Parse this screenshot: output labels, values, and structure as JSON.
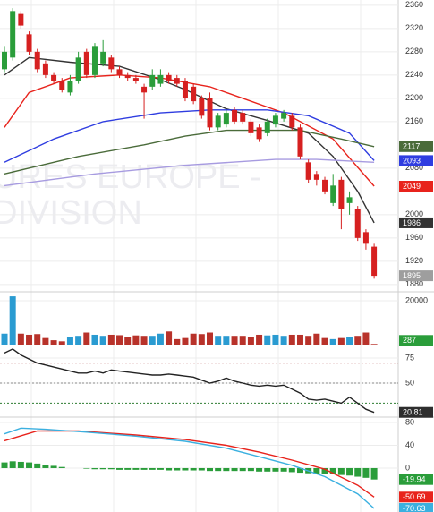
{
  "watermark": [
    "URES EUROPE -",
    "DIVISION"
  ],
  "chart_data": [
    {
      "type": "candlestick",
      "up_color": "#2a9d3a",
      "down_color": "#d62020",
      "last_color": "#9e9e9e",
      "ylim": [
        1869,
        2369
      ],
      "yticks": [
        2360,
        2320,
        2280,
        2240,
        2200,
        2160,
        2080,
        2000,
        1960,
        1920,
        1880
      ],
      "grid": true,
      "open": [
        2250,
        2270,
        2345,
        2310,
        2280,
        2260,
        2240,
        2230,
        2210,
        2230,
        2280,
        2240,
        2260,
        2270,
        2250,
        2240,
        2235,
        2220,
        2220,
        2225,
        2240,
        2235,
        2230,
        2220,
        2200,
        2200,
        2150,
        2155,
        2180,
        2175,
        2160,
        2150,
        2140,
        2155,
        2165,
        2170,
        2150,
        2090,
        2070,
        2060,
        2020,
        2060,
        2020,
        2010,
        1970,
        1945
      ],
      "high": [
        2290,
        2355,
        2350,
        2315,
        2285,
        2265,
        2245,
        2235,
        2240,
        2280,
        2285,
        2295,
        2300,
        2275,
        2255,
        2245,
        2240,
        2225,
        2250,
        2250,
        2245,
        2240,
        2235,
        2225,
        2205,
        2210,
        2175,
        2180,
        2185,
        2180,
        2165,
        2155,
        2165,
        2175,
        2180,
        2175,
        2155,
        2095,
        2075,
        2065,
        2070,
        2065,
        2040,
        2015,
        1975,
        1950
      ],
      "low": [
        2245,
        2265,
        2320,
        2275,
        2245,
        2235,
        2225,
        2210,
        2205,
        2225,
        2235,
        2235,
        2255,
        2245,
        2235,
        2230,
        2225,
        2165,
        2215,
        2220,
        2225,
        2220,
        2195,
        2190,
        2165,
        2145,
        2145,
        2150,
        2155,
        2155,
        2135,
        2125,
        2135,
        2150,
        2160,
        2145,
        2095,
        2055,
        2050,
        2035,
        2015,
        1975,
        2000,
        1955,
        1940,
        1890
      ],
      "close": [
        2280,
        2350,
        2325,
        2280,
        2250,
        2240,
        2230,
        2215,
        2230,
        2270,
        2240,
        2290,
        2280,
        2250,
        2240,
        2235,
        2230,
        2210,
        2240,
        2240,
        2230,
        2225,
        2200,
        2195,
        2170,
        2150,
        2170,
        2175,
        2160,
        2160,
        2140,
        2130,
        2160,
        2170,
        2175,
        2150,
        2100,
        2060,
        2060,
        2040,
        2050,
        2010,
        2030,
        1960,
        1950,
        1895
      ],
      "series": [
        {
          "color": "#333333",
          "label_last": true,
          "x": [
            0,
            3,
            8,
            14,
            19,
            22,
            27,
            32,
            37,
            40,
            43,
            45
          ],
          "values": [
            2240,
            2270,
            2262,
            2255,
            2232,
            2215,
            2182,
            2162,
            2140,
            2100,
            2040,
            1986
          ]
        },
        {
          "color": "#e8231c",
          "label_last": true,
          "x": [
            0,
            3,
            8,
            14,
            19,
            25,
            29,
            34,
            40,
            45
          ],
          "values": [
            2150,
            2210,
            2235,
            2240,
            2235,
            2220,
            2200,
            2175,
            2130,
            2049
          ]
        },
        {
          "color": "#2f3de0",
          "label_last": true,
          "x": [
            0,
            6,
            12,
            19,
            25,
            32,
            37,
            42,
            45
          ],
          "values": [
            2090,
            2130,
            2160,
            2175,
            2180,
            2180,
            2170,
            2140,
            2093
          ]
        },
        {
          "color": "#4a6b3a",
          "label_last": true,
          "x": [
            0,
            9,
            17,
            22,
            27,
            36,
            41,
            45
          ],
          "values": [
            2070,
            2100,
            2120,
            2135,
            2145,
            2145,
            2130,
            2117
          ]
        },
        {
          "color": "#a79be0",
          "label_last": false,
          "x": [
            0,
            11,
            22,
            33,
            38,
            45
          ],
          "values": [
            2050,
            2070,
            2085,
            2095,
            2095,
            2090
          ]
        }
      ]
    },
    {
      "type": "bar",
      "up_color": "#2a9bd1",
      "down_color": "#b8322a",
      "last_color": "#2a9d3a",
      "ylim": [
        0,
        23260
      ],
      "yticks": [
        20000
      ],
      "grid": true,
      "values": [
        5000,
        22000,
        5000,
        4500,
        4800,
        3000,
        2000,
        1500,
        3500,
        4000,
        5500,
        4500,
        4000,
        4500,
        4300,
        3500,
        4200,
        4000,
        4000,
        5000,
        6000,
        2500,
        3000,
        5000,
        4800,
        5500,
        4000,
        4000,
        4000,
        4000,
        3500,
        4500,
        4200,
        4500,
        4000,
        4500,
        4500,
        4000,
        5000,
        3000,
        2500,
        3000,
        3500,
        4000,
        5500,
        287
      ]
    },
    {
      "type": "line",
      "color": "#222222",
      "last_color": "#2e2e2e",
      "ylim": [
        17,
        85.7
      ],
      "yticks": [
        75,
        50
      ],
      "grid": true,
      "levels": [
        {
          "value": 70,
          "color": "#9b1c1c"
        },
        {
          "value": 50,
          "color": "#888888"
        },
        {
          "value": 30,
          "color": "#2e7d32"
        }
      ],
      "values": [
        80,
        84,
        78,
        74,
        70,
        68,
        66,
        64,
        62,
        60,
        60,
        62,
        60,
        63,
        62,
        61,
        60,
        59,
        58,
        58,
        59,
        58,
        57,
        56,
        53,
        50,
        52,
        55,
        52,
        50,
        48,
        47,
        48,
        47,
        48,
        44,
        40,
        34,
        33,
        34,
        32,
        30,
        36,
        30,
        24,
        20.81
      ]
    },
    {
      "type": "macd",
      "hist_color": "#2a9d3a",
      "ylim": [
        -76.9,
        87.8
      ],
      "yticks": [
        80,
        40,
        0
      ],
      "grid": true,
      "hist": [
        10,
        12,
        11,
        10,
        8,
        6,
        4,
        2,
        0,
        0,
        -1,
        -2,
        -2,
        -2,
        -3,
        -3,
        -3,
        -3,
        -3,
        -3,
        -4,
        -4,
        -4,
        -4,
        -4,
        -5,
        -5,
        -5,
        -5,
        -5,
        -5,
        -6,
        -6,
        -6,
        -6,
        -7,
        -8,
        -9,
        -10,
        -10,
        -11,
        -12,
        -13,
        -15,
        -17,
        -19.94
      ],
      "series": [
        {
          "color": "#e8231c",
          "x": [
            0,
            4,
            9,
            16,
            22,
            27,
            31,
            35,
            39,
            43,
            45
          ],
          "values": [
            48,
            65,
            65,
            58,
            50,
            40,
            28,
            14,
            -2,
            -30,
            -50.69
          ]
        },
        {
          "color": "#3bb0e0",
          "x": [
            0,
            2,
            5,
            10,
            16,
            22,
            27,
            31,
            35,
            39,
            43,
            45
          ],
          "values": [
            60,
            70,
            68,
            63,
            56,
            47,
            35,
            20,
            5,
            -15,
            -45,
            -70.63
          ]
        }
      ]
    }
  ]
}
